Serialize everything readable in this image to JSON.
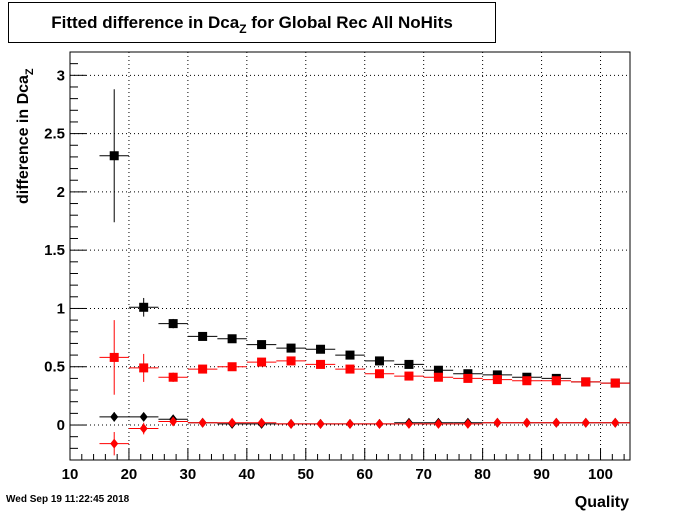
{
  "title": {
    "main": "Fitted difference in Dca",
    "sub": "Z",
    "rest": " for Global Rec All NoHits"
  },
  "timestamp": "Wed Sep 19 11:22:45 2018",
  "chart_data": {
    "type": "scatter",
    "title": "Fitted difference in Dca_Z for Global Rec All NoHits",
    "xlabel": "Quality",
    "ylabel": {
      "main": "difference in Dca",
      "sub": "Z"
    },
    "xlim": [
      10,
      105
    ],
    "ylim": [
      -0.3,
      3.2
    ],
    "xticks": [
      10,
      20,
      30,
      40,
      50,
      60,
      70,
      80,
      90,
      100
    ],
    "xtick_labels": [
      "10",
      "20",
      "30",
      "40",
      "50",
      "60",
      "70",
      "80",
      "90",
      "100"
    ],
    "yticks": [
      0,
      0.5,
      1,
      1.5,
      2,
      2.5,
      3
    ],
    "ytick_labels": [
      "0",
      "0.5",
      "1",
      "1.5",
      "2",
      "2.5",
      "3"
    ],
    "grid": true,
    "series": [
      {
        "marker": "square",
        "color": "#000000",
        "x": [
          17.5,
          22.5,
          27.5,
          32.5,
          37.5,
          42.5,
          47.5,
          52.5,
          57.5,
          62.5,
          67.5,
          72.5,
          77.5,
          82.5,
          87.5,
          92.5,
          97.5,
          102.5
        ],
        "y": [
          2.31,
          1.01,
          0.87,
          0.76,
          0.74,
          0.69,
          0.66,
          0.65,
          0.6,
          0.55,
          0.52,
          0.47,
          0.44,
          0.43,
          0.41,
          0.4,
          0.37,
          0.36
        ],
        "yerr": [
          0.57,
          0.08,
          0.04,
          0.02,
          0.02,
          0.02,
          0.01,
          0.01,
          0.01,
          0.01,
          0.01,
          0.01,
          0.01,
          0.01,
          0.01,
          0.01,
          0.01,
          0.01
        ]
      },
      {
        "marker": "square",
        "color": "#ff0000",
        "x": [
          17.5,
          22.5,
          27.5,
          32.5,
          37.5,
          42.5,
          47.5,
          52.5,
          57.5,
          62.5,
          67.5,
          72.5,
          77.5,
          82.5,
          87.5,
          92.5,
          97.5,
          102.5
        ],
        "y": [
          0.58,
          0.49,
          0.41,
          0.48,
          0.5,
          0.54,
          0.55,
          0.52,
          0.48,
          0.44,
          0.42,
          0.41,
          0.4,
          0.39,
          0.38,
          0.38,
          0.37,
          0.36
        ],
        "yerr": [
          0.32,
          0.12,
          0.04,
          0.02,
          0.02,
          0.02,
          0.01,
          0.01,
          0.01,
          0.01,
          0.01,
          0.01,
          0.01,
          0.01,
          0.01,
          0.01,
          0.01,
          0.01
        ]
      },
      {
        "marker": "diamond",
        "color": "#000000",
        "x": [
          17.5,
          22.5,
          27.5,
          32.5,
          37.5,
          42.5,
          47.5,
          52.5,
          57.5,
          62.5,
          67.5,
          72.5,
          77.5,
          82.5,
          87.5,
          92.5,
          97.5,
          102.5
        ],
        "y": [
          0.07,
          0.07,
          0.05,
          0.02,
          0.01,
          0.01,
          0.01,
          0.01,
          0.01,
          0.01,
          0.02,
          0.02,
          0.02,
          0.02,
          0.02,
          0.02,
          0.02,
          0.02
        ],
        "yerr": [
          0.04,
          0.03,
          0.02,
          0.01,
          0.01,
          0.01,
          0.01,
          0.01,
          0.01,
          0.01,
          0.01,
          0.01,
          0.01,
          0.01,
          0.01,
          0.01,
          0.01,
          0.01
        ]
      },
      {
        "marker": "diamond",
        "color": "#ff0000",
        "x": [
          17.5,
          22.5,
          27.5,
          32.5,
          37.5,
          42.5,
          47.5,
          52.5,
          57.5,
          62.5,
          67.5,
          72.5,
          77.5,
          82.5,
          87.5,
          92.5,
          97.5,
          102.5
        ],
        "y": [
          -0.16,
          -0.03,
          0.03,
          0.02,
          0.02,
          0.02,
          0.01,
          0.01,
          0.01,
          0.01,
          0.01,
          0.01,
          0.01,
          0.02,
          0.02,
          0.02,
          0.02,
          0.02
        ],
        "yerr": [
          0.1,
          0.05,
          0.02,
          0.01,
          0.01,
          0.01,
          0.01,
          0.01,
          0.01,
          0.01,
          0.01,
          0.01,
          0.01,
          0.01,
          0.01,
          0.01,
          0.01,
          0.01
        ]
      }
    ]
  }
}
